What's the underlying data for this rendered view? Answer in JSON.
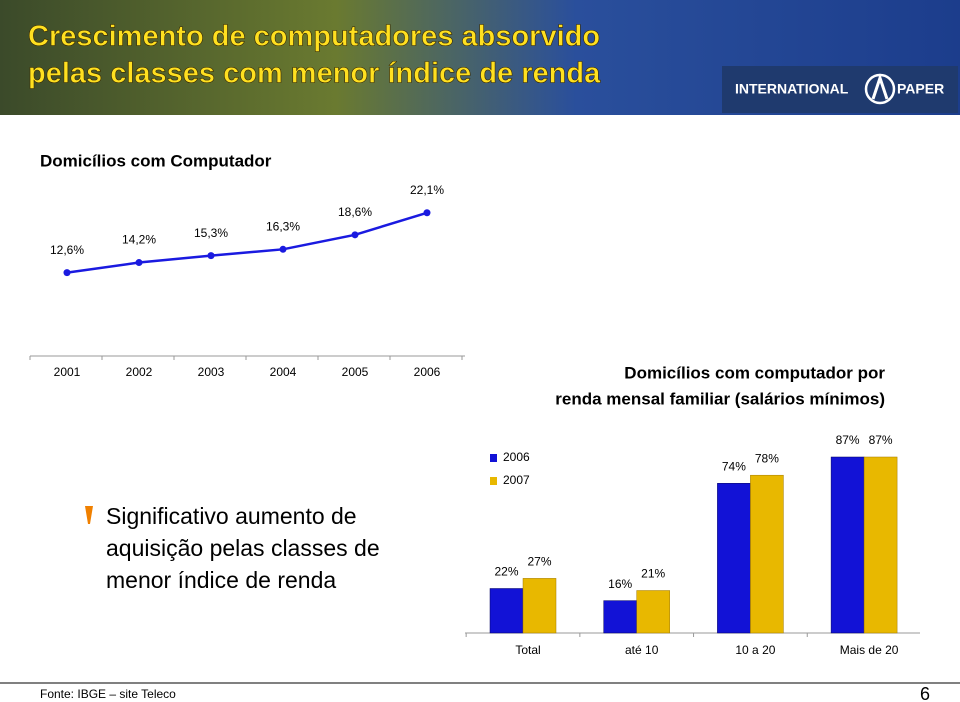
{
  "header": {
    "title": [
      "Crescimento de computadores absorvido",
      "pelas classes com menor índice de renda"
    ],
    "logo": [
      "INTERNATIONAL",
      "PAPER"
    ]
  },
  "chart_data": [
    {
      "type": "line",
      "title": "Domicílios com Computador",
      "categories": [
        "2001",
        "2002",
        "2003",
        "2004",
        "2005",
        "2006"
      ],
      "values": [
        12.6,
        14.2,
        15.3,
        16.3,
        18.6,
        22.1
      ],
      "value_labels": [
        "12,6%",
        "14,2%",
        "15,3%",
        "16,3%",
        "18,6%",
        "22,1%"
      ],
      "color": "#1a1ae0"
    },
    {
      "type": "bar",
      "title": [
        "Domicílios com computador por",
        "renda mensal familiar (salários mínimos)"
      ],
      "categories": [
        "Total",
        "até 10",
        "10 a 20",
        "Mais de 20"
      ],
      "series": [
        {
          "name": "2006",
          "color": "#1212d6",
          "values": [
            22,
            16,
            74,
            87
          ],
          "value_labels": [
            "22%",
            "16%",
            "74%",
            "87%"
          ]
        },
        {
          "name": "2007",
          "color": "#e8b800",
          "values": [
            27,
            21,
            78,
            87
          ],
          "value_labels": [
            "27%",
            "21%",
            "78%",
            "87%"
          ]
        }
      ]
    }
  ],
  "bullet": "Significativo aumento de aquisição pelas classes de menor índice de renda",
  "footer": {
    "source": "Fonte: IBGE – site Teleco",
    "page": "6"
  }
}
